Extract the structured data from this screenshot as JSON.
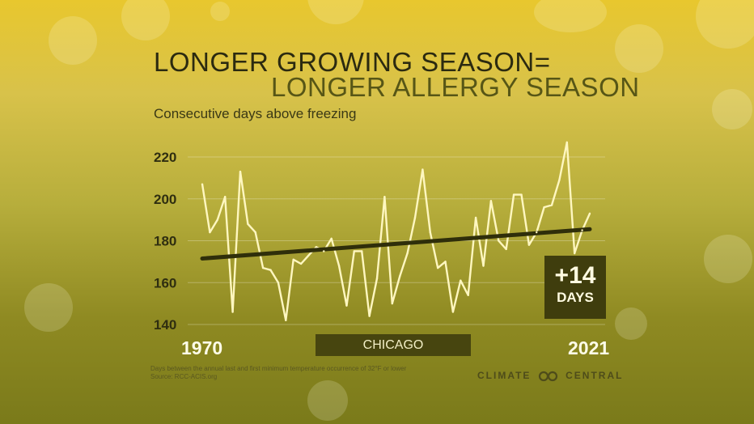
{
  "title": {
    "line1": "LONGER GROWING SEASON=",
    "line2": "LONGER ALLERGY SEASON"
  },
  "subtitle": "Consecutive days above freezing",
  "location_label": "CHICAGO",
  "badge": {
    "value": "+14",
    "unit": "DAYS"
  },
  "footnote": {
    "line1": "Days between the annual last and first minimum temperature occurrence of 32°F or lower",
    "line2": "Source: RCC-ACIS.org"
  },
  "brand": {
    "left": "CLIMATE",
    "right": "CENTRAL",
    "icon": "climate-central-logo-icon"
  },
  "colors": {
    "series": "#fff7c0",
    "trend": "#2f2e0a",
    "badge": "#3f3d0d",
    "accent": "#e8c72e"
  },
  "chart_data": {
    "type": "line",
    "x_range_labels": [
      "1970",
      "2021"
    ],
    "x": [
      1970,
      1971,
      1972,
      1973,
      1974,
      1975,
      1976,
      1977,
      1978,
      1979,
      1980,
      1981,
      1982,
      1983,
      1984,
      1985,
      1986,
      1987,
      1988,
      1989,
      1990,
      1991,
      1992,
      1993,
      1994,
      1995,
      1996,
      1997,
      1998,
      1999,
      2000,
      2001,
      2002,
      2003,
      2004,
      2005,
      2006,
      2007,
      2008,
      2009,
      2010,
      2011,
      2012,
      2013,
      2014,
      2015,
      2016,
      2017,
      2018,
      2019,
      2020,
      2021
    ],
    "series": [
      {
        "values": [
          207,
          184,
          190,
          201,
          146,
          213,
          188,
          184,
          167,
          166,
          160,
          142,
          171,
          169,
          173,
          177,
          175,
          181,
          168,
          149,
          175,
          175,
          144,
          162,
          201,
          150,
          163,
          174,
          191,
          214,
          184,
          167,
          170,
          146,
          161,
          154,
          191,
          168,
          199,
          180,
          176,
          202,
          202,
          178,
          184,
          196,
          197,
          209,
          227,
          174,
          185,
          193
        ]
      }
    ],
    "trend": {
      "start": 171.5,
      "end": 185.5
    },
    "yticks": [
      140,
      160,
      180,
      200,
      220
    ],
    "ylim": [
      140,
      225
    ],
    "grid": true
  }
}
